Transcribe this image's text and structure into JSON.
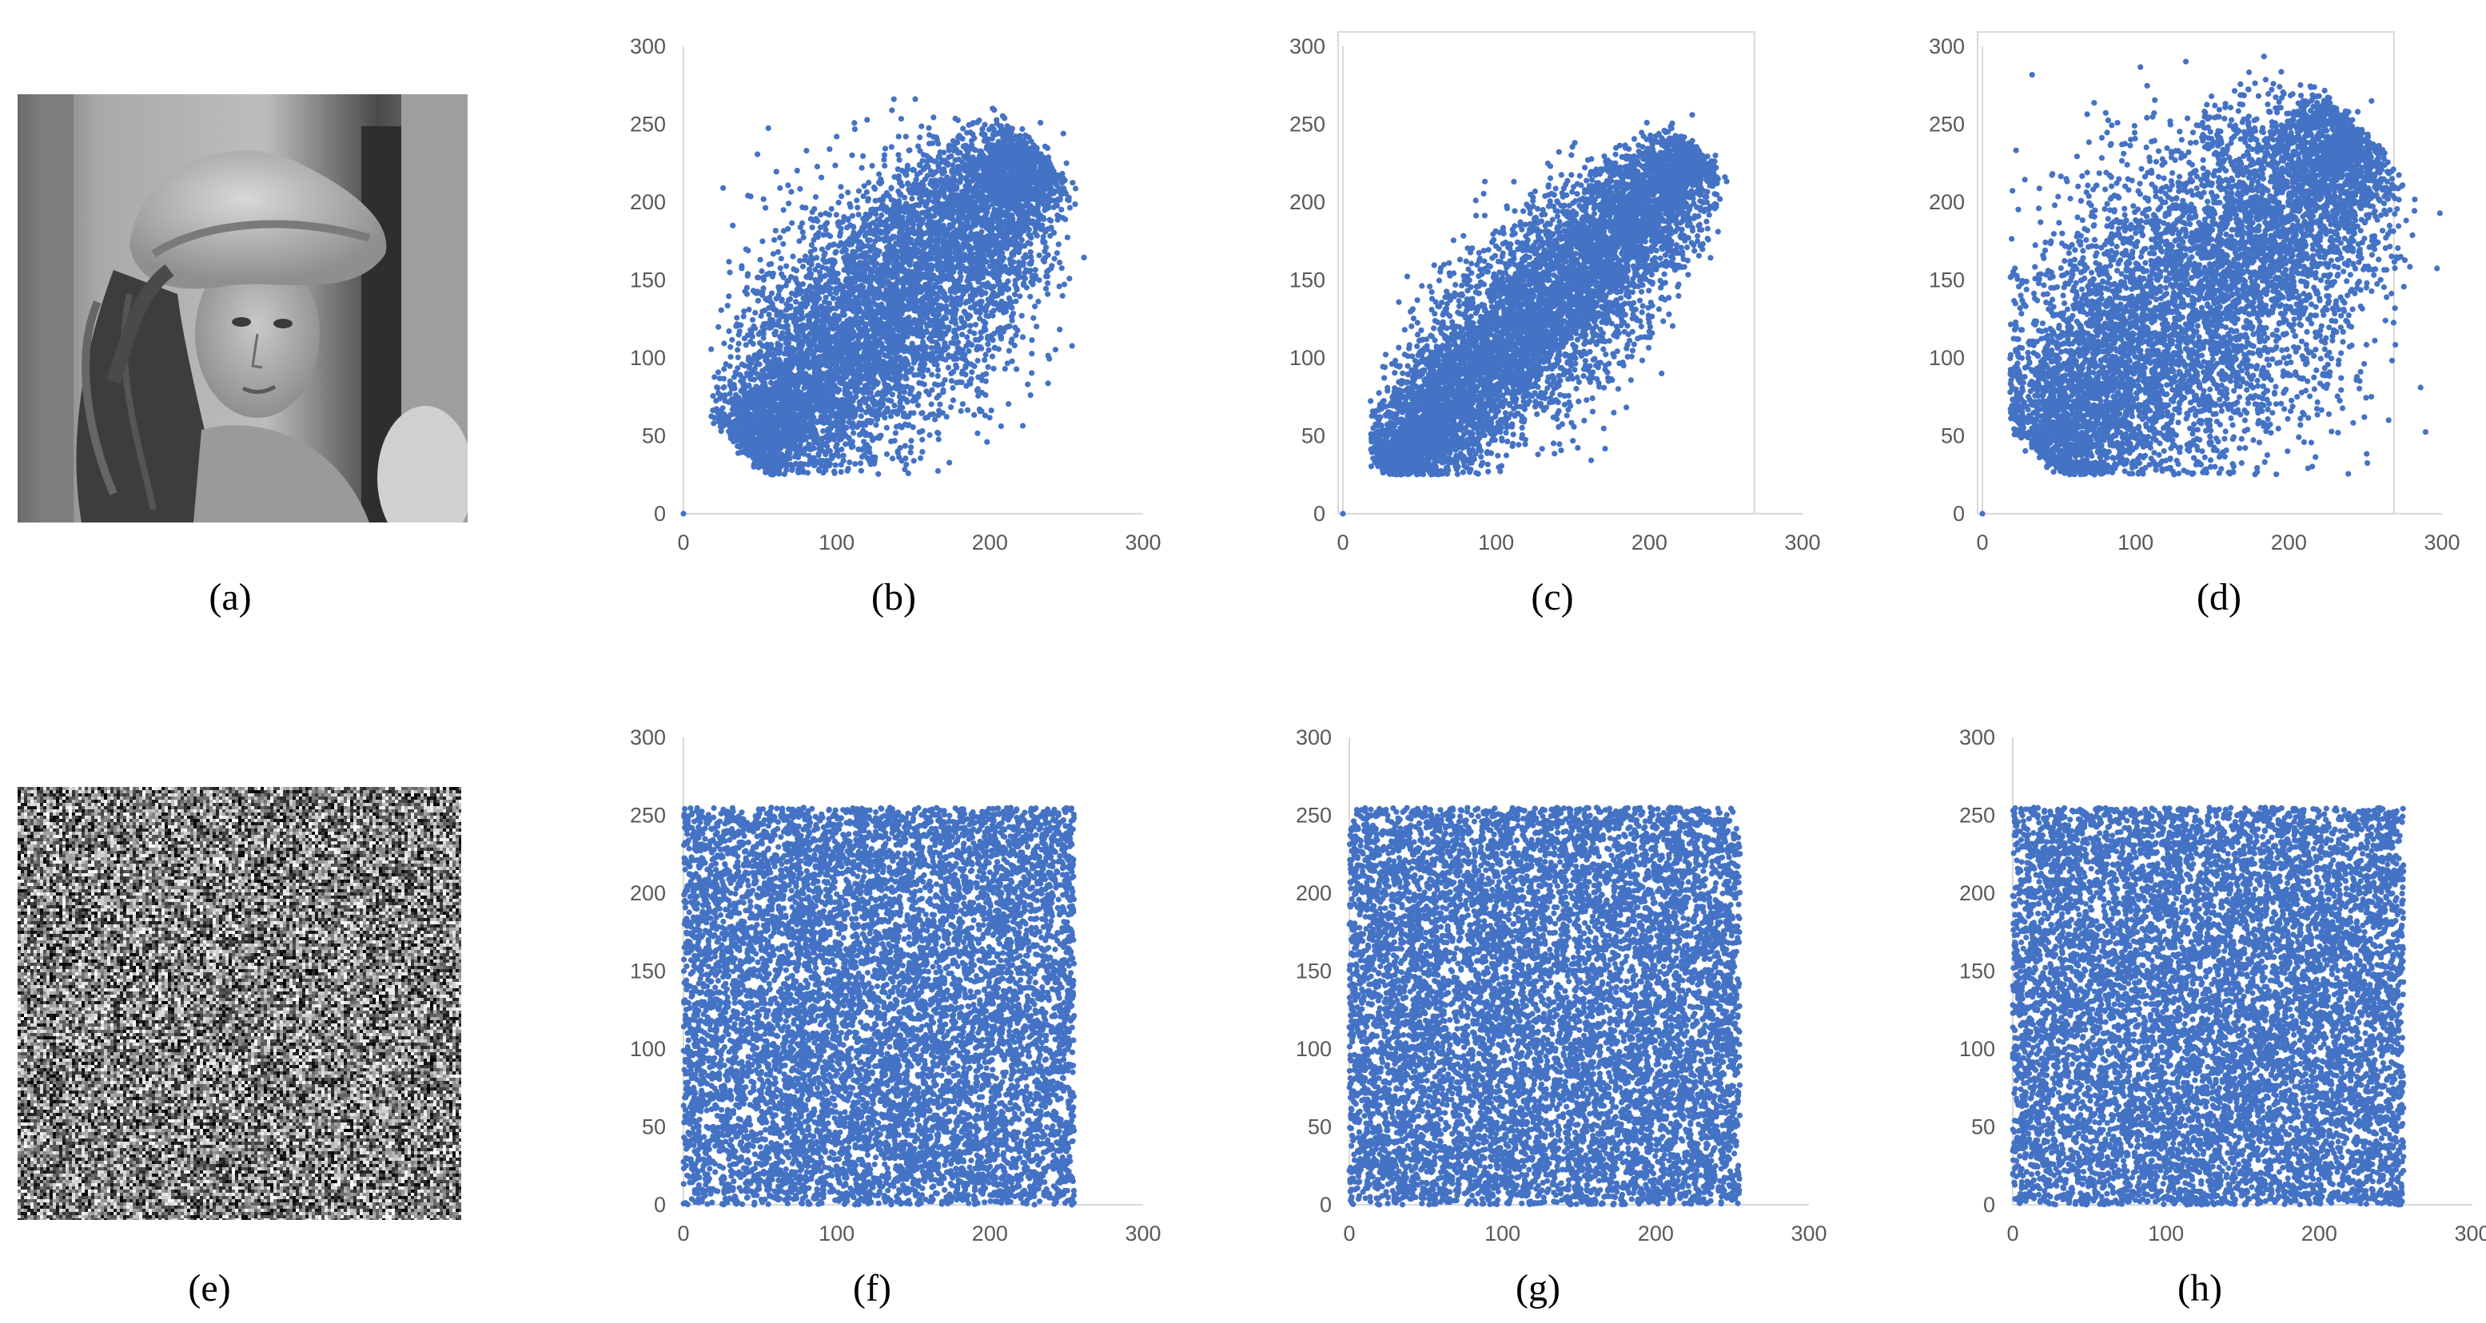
{
  "captions": [
    "(a)",
    "(b)",
    "(c)",
    "(d)",
    "(e)",
    "(f)",
    "(g)",
    "(h)"
  ],
  "images": [
    {
      "name": "image-a",
      "kind": "grayscale-portrait"
    },
    {
      "name": "image-e",
      "kind": "noise"
    }
  ],
  "colors": {
    "point": "#4472C4",
    "axis": "#D9D9D9",
    "tick": "#595959",
    "frame": "#D9D9D9"
  },
  "chart_data": [
    {
      "id": "b",
      "type": "scatter",
      "title": "",
      "xlabel": "",
      "ylabel": "",
      "xlim": [
        0,
        300
      ],
      "ylim": [
        0,
        300
      ],
      "xticks": [
        0,
        100,
        200,
        300
      ],
      "yticks": [
        0,
        50,
        100,
        150,
        200,
        250,
        300
      ],
      "grid": false,
      "legend": "none",
      "frame": false,
      "distribution": "correlated",
      "corr_center": [
        40,
        232
      ],
      "corr_spread": 58,
      "corr_noise": 21,
      "outliers": [
        [
          0,
          0
        ],
        [
          248,
          244
        ],
        [
          233,
          251
        ],
        [
          250,
          225
        ]
      ]
    },
    {
      "id": "c",
      "type": "scatter",
      "title": "",
      "xlabel": "",
      "ylabel": "",
      "xlim": [
        0,
        300
      ],
      "ylim": [
        0,
        300
      ],
      "xticks": [
        0,
        100,
        200,
        300
      ],
      "yticks": [
        0,
        50,
        100,
        150,
        200,
        250,
        300
      ],
      "grid": false,
      "legend": "none",
      "frame": true,
      "distribution": "correlated",
      "corr_center": [
        28,
        232
      ],
      "corr_spread": 40,
      "corr_noise": 15,
      "outliers": [
        [
          0,
          0
        ],
        [
          228,
          256
        ],
        [
          236,
          228
        ],
        [
          225,
          185
        ]
      ]
    },
    {
      "id": "d",
      "type": "scatter",
      "title": "",
      "xlabel": "",
      "ylabel": "",
      "xlim": [
        0,
        300
      ],
      "ylim": [
        0,
        300
      ],
      "xticks": [
        0,
        100,
        200,
        300
      ],
      "yticks": [
        0,
        50,
        100,
        150,
        200,
        250,
        300
      ],
      "grid": false,
      "legend": "none",
      "frame": true,
      "distribution": "correlated",
      "corr_center": [
        38,
        246
      ],
      "corr_spread": 80,
      "corr_noise": 28,
      "outliers": [
        [
          0,
          0
        ],
        [
          254,
          265
        ],
        [
          268,
          210
        ],
        [
          266,
          195
        ],
        [
          245,
          258
        ]
      ]
    },
    {
      "id": "f",
      "type": "scatter",
      "title": "",
      "xlabel": "",
      "ylabel": "",
      "xlim": [
        0,
        300
      ],
      "ylim": [
        0,
        300
      ],
      "xticks": [
        0,
        100,
        200,
        300
      ],
      "yticks": [
        0,
        50,
        100,
        150,
        200,
        250,
        300
      ],
      "grid": false,
      "legend": "none",
      "frame": false,
      "distribution": "uniform",
      "uniform_range": [
        0,
        255
      ]
    },
    {
      "id": "g",
      "type": "scatter",
      "title": "",
      "xlabel": "",
      "ylabel": "",
      "xlim": [
        0,
        300
      ],
      "ylim": [
        0,
        300
      ],
      "xticks": [
        0,
        100,
        200,
        300
      ],
      "yticks": [
        0,
        50,
        100,
        150,
        200,
        250,
        300
      ],
      "grid": false,
      "legend": "none",
      "frame": false,
      "distribution": "uniform",
      "uniform_range": [
        0,
        255
      ]
    },
    {
      "id": "h",
      "type": "scatter",
      "title": "",
      "xlabel": "",
      "ylabel": "",
      "xlim": [
        0,
        300
      ],
      "ylim": [
        0,
        300
      ],
      "xticks": [
        0,
        100,
        200,
        300
      ],
      "yticks": [
        0,
        50,
        100,
        150,
        200,
        250,
        300
      ],
      "grid": false,
      "legend": "none",
      "frame": false,
      "distribution": "uniform",
      "uniform_range": [
        0,
        255
      ]
    }
  ]
}
